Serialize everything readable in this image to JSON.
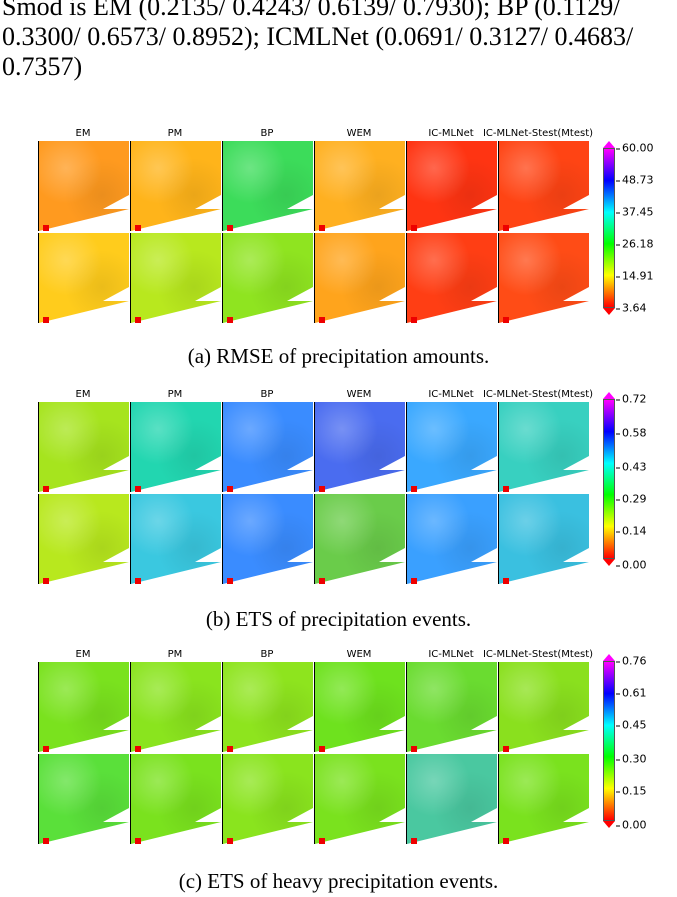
{
  "intro_text": "Smod is EM (0.2135/ 0.4243/ 0.6139/ 0.7930); BP (0.1129/ 0.3300/ 0.6573/ 0.8952); ICMLNet (0.0691/ 0.3127/ 0.4683/ 0.7357)",
  "columns": [
    "EM",
    "PM",
    "BP",
    "WEM",
    "IC-MLNet",
    "IC-MLNet-Stest(Mtest)"
  ],
  "panels": [
    {
      "caption": "(a) RMSE of precipitation amounts.",
      "colorbar_ticks": [
        "60.00",
        "48.73",
        "37.45",
        "26.18",
        "14.91",
        "3.64"
      ],
      "tone_rows": [
        [
          "#ff9a1f",
          "#ffb41a",
          "#3cdc5a",
          "#ffb020",
          "#ff3412",
          "#ff4414"
        ],
        [
          "#ffcc1c",
          "#b8e81e",
          "#8fe420",
          "#ffa41c",
          "#ff3e14",
          "#ff4c16"
        ]
      ]
    },
    {
      "caption": "(b) ETS of precipitation events.",
      "colorbar_ticks": [
        "0.72",
        "0.58",
        "0.43",
        "0.29",
        "0.14",
        "0.00"
      ],
      "tone_rows": [
        [
          "#a6e41e",
          "#22d6b0",
          "#3a8cff",
          "#4a6cf0",
          "#3aa8ff",
          "#38d0c0"
        ],
        [
          "#b8e81e",
          "#3ac8e0",
          "#3a8cff",
          "#6acc4a",
          "#3aa0ff",
          "#3ac0e0"
        ]
      ]
    },
    {
      "caption": "(c) ETS of heavy precipitation events.",
      "colorbar_ticks": [
        "0.76",
        "0.61",
        "0.45",
        "0.30",
        "0.15",
        "0.00"
      ],
      "tone_rows": [
        [
          "#7ae21e",
          "#8ae41e",
          "#8ee41e",
          "#6ee21e",
          "#6adc30",
          "#8ae01e"
        ],
        [
          "#5ae03a",
          "#7ae21e",
          "#8ae41e",
          "#7ae21e",
          "#4ac8a0",
          "#7ae21e"
        ]
      ]
    }
  ]
}
